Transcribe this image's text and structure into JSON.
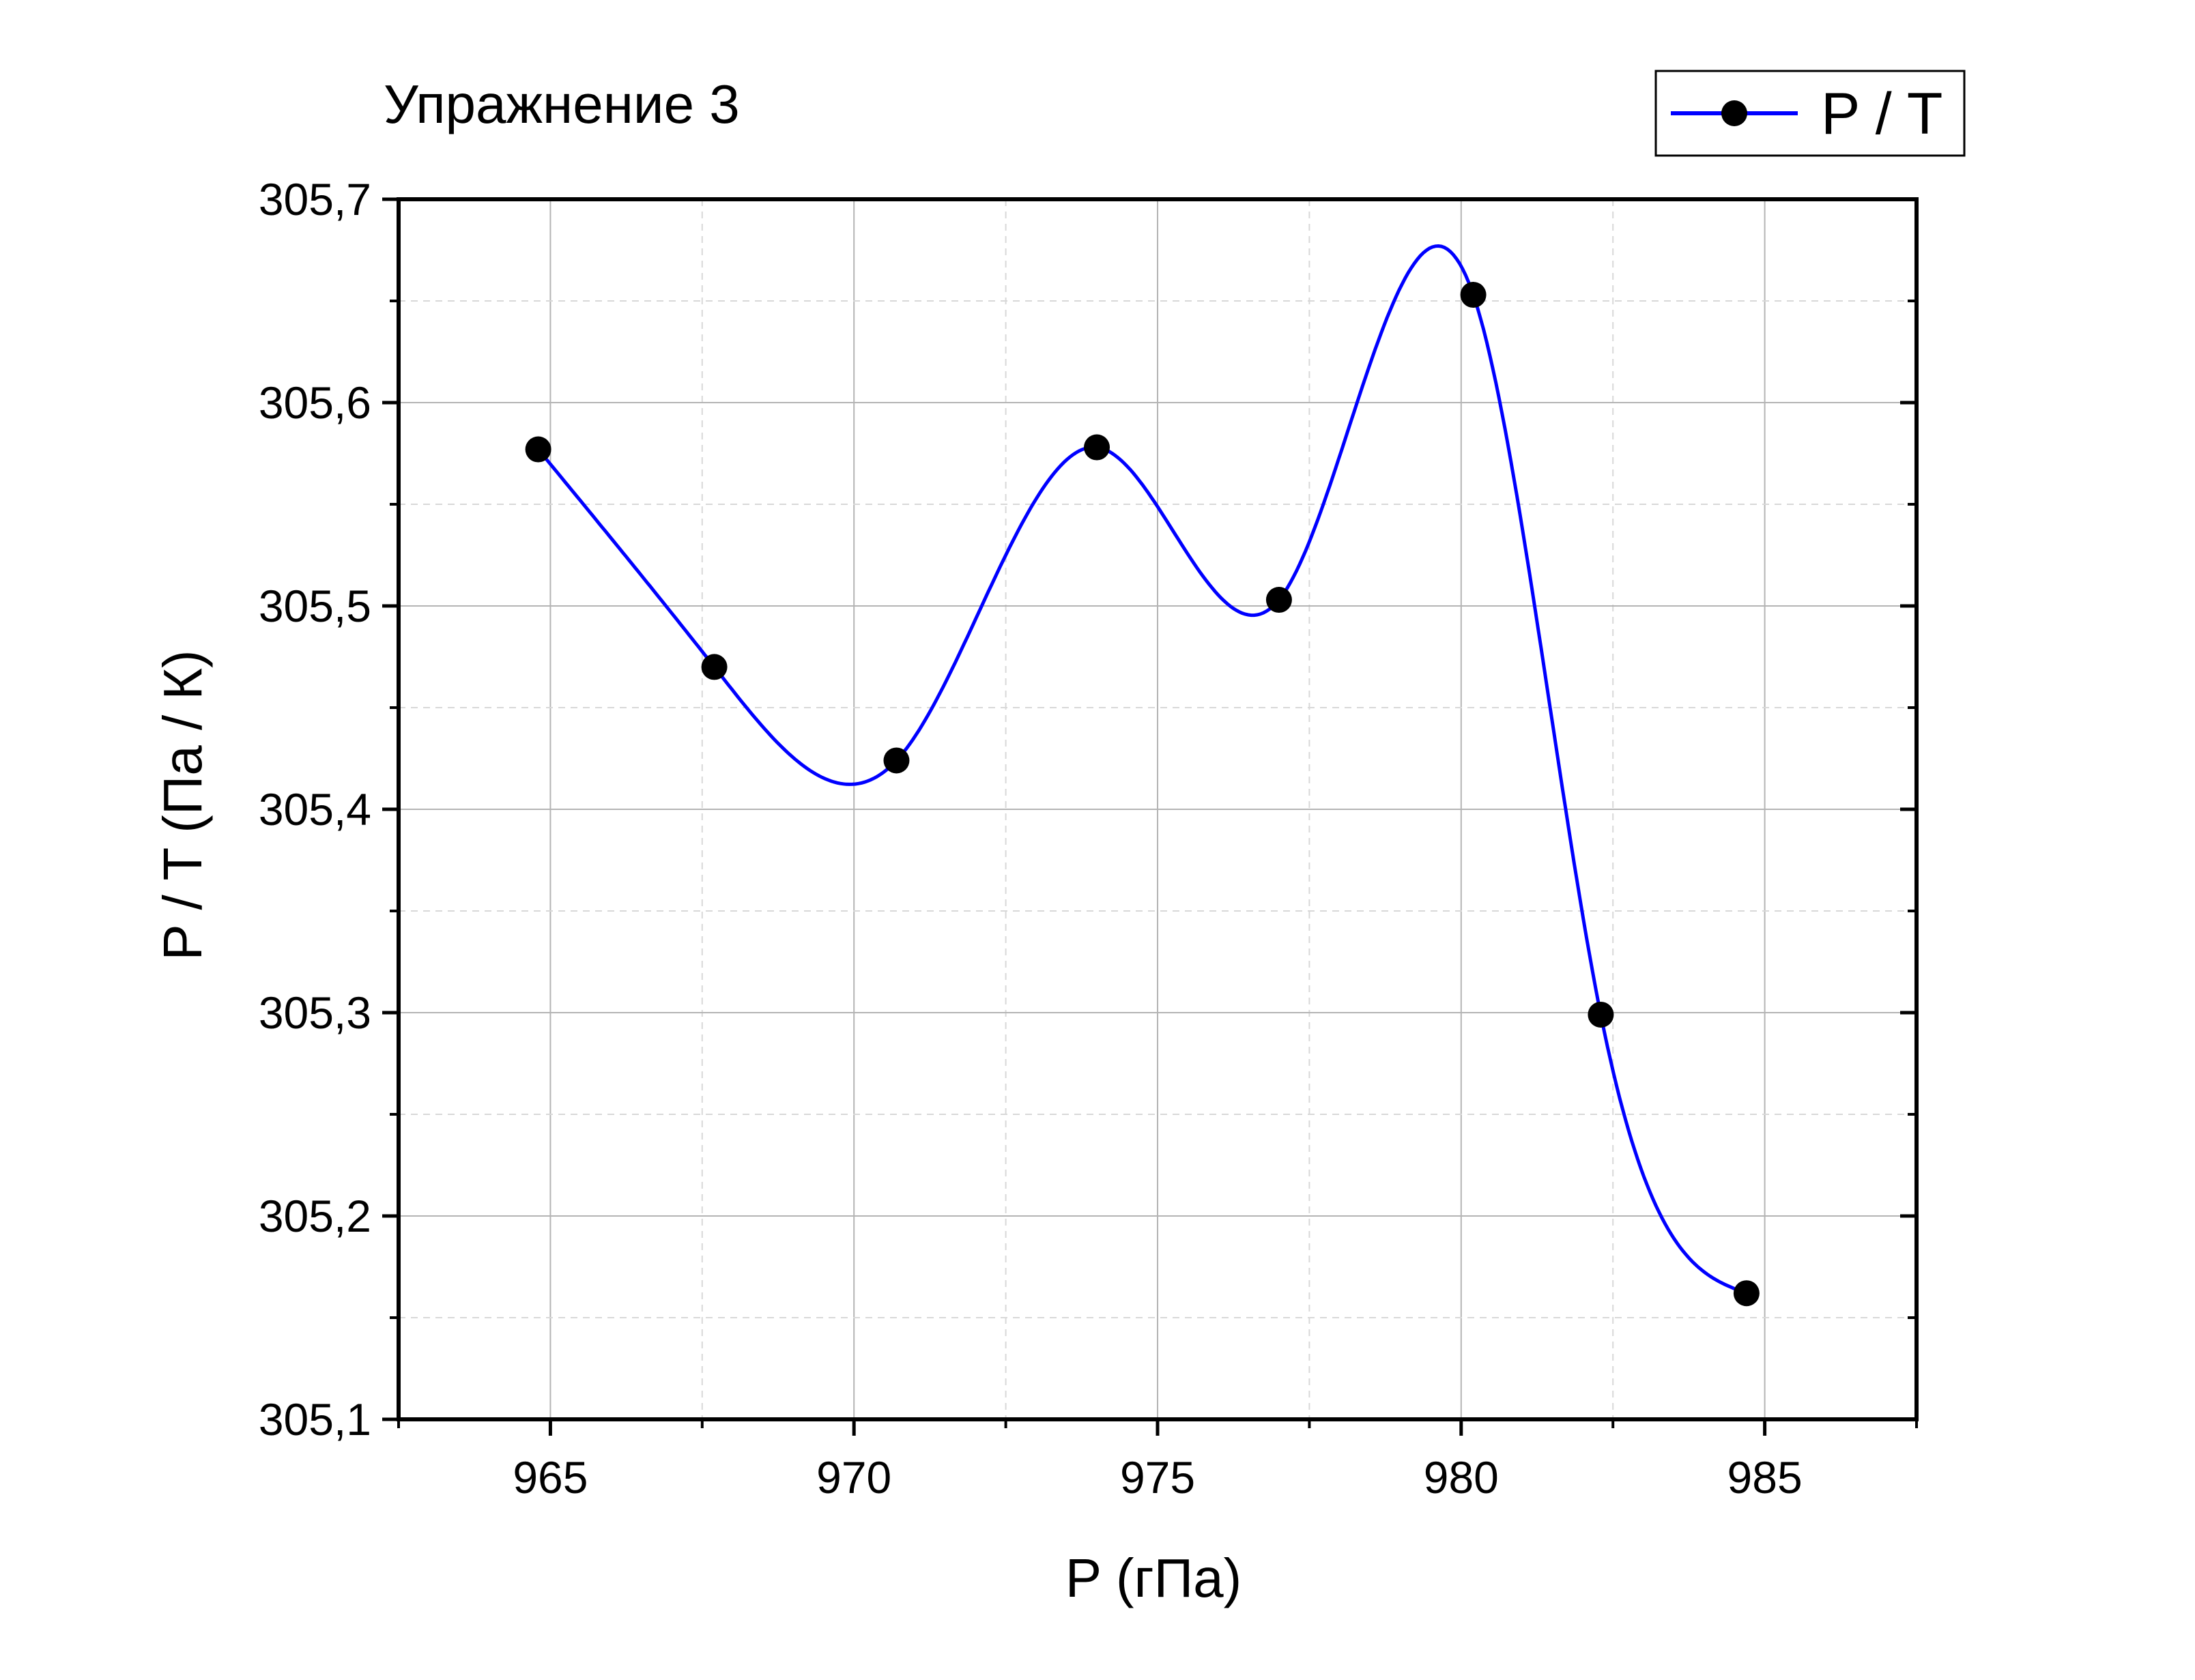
{
  "chart_data": {
    "type": "line",
    "title": "Упражнение 3",
    "xlabel": "P (гПа)",
    "ylabel": "P / T (Па / К)",
    "xlim": [
      962.5,
      987.5
    ],
    "ylim": [
      305.1,
      305.7
    ],
    "x_ticks": [
      "965",
      "970",
      "975",
      "980",
      "985"
    ],
    "x_tick_values": [
      965,
      970,
      975,
      980,
      985
    ],
    "y_ticks": [
      "305,1",
      "305,2",
      "305,3",
      "305,4",
      "305,5",
      "305,6",
      "305,7"
    ],
    "y_tick_values": [
      305.1,
      305.2,
      305.3,
      305.4,
      305.5,
      305.6,
      305.7
    ],
    "grid": true,
    "legend_position": "top-right",
    "series": [
      {
        "name": "P / T",
        "color": "#0000ff",
        "marker_color": "#000000",
        "line": "spline",
        "x": [
          964.8,
          967.7,
          970.7,
          974.0,
          977.0,
          980.2,
          982.3,
          984.7
        ],
        "y": [
          305.577,
          305.47,
          305.424,
          305.578,
          305.503,
          305.653,
          305.299,
          305.162
        ]
      }
    ]
  }
}
